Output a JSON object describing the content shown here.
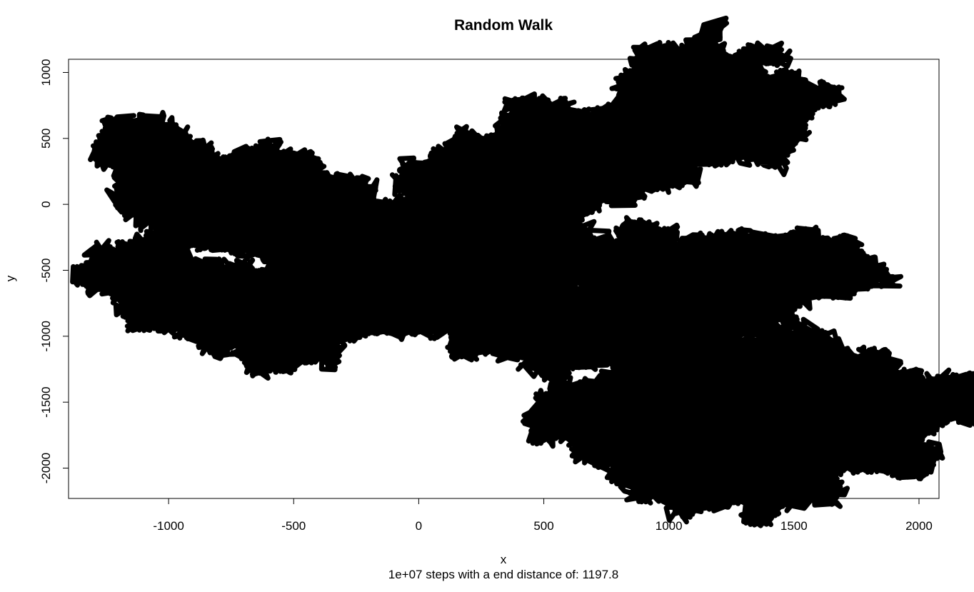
{
  "chart_data": {
    "type": "line",
    "title": "Random Walk",
    "xlabel": "x",
    "ylabel": "y",
    "subtitle": "1e+07 steps with a end distance of: 1197.8",
    "xlim": [
      -1400,
      2080
    ],
    "ylim": [
      -2230,
      1100
    ],
    "x_ticks": [
      -1000,
      -500,
      0,
      500,
      1000,
      1500,
      2000
    ],
    "y_ticks": [
      1000,
      500,
      0,
      -500,
      -1000,
      -1500,
      -2000
    ],
    "x_tick_labels": [
      "-1000",
      "-500",
      "0",
      "500",
      "1000",
      "1500",
      "2000"
    ],
    "y_tick_labels": [
      "1000",
      "500",
      "0",
      "-500",
      "-1000",
      "-1500",
      "-2000"
    ],
    "grid": false,
    "legend": "none",
    "line_color": "#000000",
    "series": [
      {
        "x": [
          -1250,
          -1100,
          -1000,
          -900,
          -800,
          -700,
          -600,
          -500,
          -400,
          -300,
          -200,
          -300,
          -450,
          -600,
          -700,
          -800,
          -900,
          -1000,
          -1100,
          -1000,
          -900,
          -700,
          -600,
          -500,
          -400,
          -300,
          -200,
          -100,
          0,
          100,
          150,
          250,
          400,
          300,
          200,
          100,
          150,
          300,
          450,
          700,
          1000,
          1300,
          1450,
          1100,
          900,
          700,
          500,
          300,
          200,
          300,
          500,
          800,
          1100,
          1400,
          1600,
          1300,
          1000,
          800,
          600,
          450,
          400,
          600,
          800,
          1000,
          1200,
          1400,
          1600,
          1800,
          1900,
          1850,
          1700,
          1550,
          1400,
          1250,
          1100,
          950,
          800,
          700,
          900,
          1100,
          1300,
          1500,
          1700,
          1850
        ],
        "y": [
          -450,
          -520,
          -600,
          -700,
          -800,
          -900,
          -950,
          -900,
          -800,
          -700,
          -600,
          -400,
          -300,
          -200,
          -100,
          0,
          100,
          200,
          300,
          250,
          150,
          200,
          100,
          0,
          -100,
          -200,
          -300,
          -500,
          -600,
          -700,
          -650,
          -550,
          -450,
          -300,
          -150,
          -50,
          100,
          200,
          300,
          500,
          800,
          900,
          700,
          500,
          350,
          150,
          50,
          -50,
          -150,
          -350,
          -450,
          -500,
          -550,
          -480,
          -600,
          -700,
          -750,
          -800,
          -850,
          -900,
          -950,
          -1000,
          -1050,
          -1150,
          -1250,
          -1300,
          -1350,
          -1400,
          -1550,
          -1700,
          -1800,
          -1900,
          -2000,
          -2050,
          -1950,
          -1850,
          -1750,
          -1650,
          -1550,
          -1450,
          -1500,
          -1600,
          -1700,
          -1800
        ]
      }
    ]
  }
}
